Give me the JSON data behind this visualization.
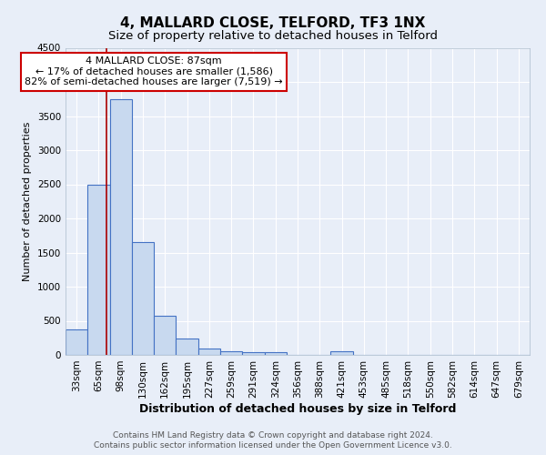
{
  "title": "4, MALLARD CLOSE, TELFORD, TF3 1NX",
  "subtitle": "Size of property relative to detached houses in Telford",
  "xlabel": "Distribution of detached houses by size in Telford",
  "ylabel": "Number of detached properties",
  "footer_line1": "Contains HM Land Registry data © Crown copyright and database right 2024.",
  "footer_line2": "Contains public sector information licensed under the Open Government Licence v3.0.",
  "annotation_title": "4 MALLARD CLOSE: 87sqm",
  "annotation_line1": "← 17% of detached houses are smaller (1,586)",
  "annotation_line2": "82% of semi-detached houses are larger (7,519) →",
  "bar_labels": [
    "33sqm",
    "65sqm",
    "98sqm",
    "130sqm",
    "162sqm",
    "195sqm",
    "227sqm",
    "259sqm",
    "291sqm",
    "324sqm",
    "356sqm",
    "388sqm",
    "421sqm",
    "453sqm",
    "485sqm",
    "518sqm",
    "550sqm",
    "582sqm",
    "614sqm",
    "647sqm",
    "679sqm"
  ],
  "bar_heights": [
    375,
    2500,
    3750,
    1650,
    580,
    240,
    100,
    60,
    40,
    40,
    0,
    0,
    50,
    0,
    0,
    0,
    0,
    0,
    0,
    0,
    0
  ],
  "bar_color": "#c8d9ef",
  "bar_edge_color": "#4472c4",
  "red_line_x": 1.35,
  "ylim": [
    0,
    4500
  ],
  "yticks": [
    0,
    500,
    1000,
    1500,
    2000,
    2500,
    3000,
    3500,
    4000,
    4500
  ],
  "bg_color": "#e8eef8",
  "grid_color": "#ffffff",
  "title_fontsize": 11,
  "subtitle_fontsize": 9.5,
  "xlabel_fontsize": 9,
  "ylabel_fontsize": 8,
  "tick_fontsize": 7.5,
  "annotation_fontsize": 8,
  "annotation_box_color": "#ffffff",
  "annotation_box_edge_color": "#cc0000",
  "footer_fontsize": 6.5
}
